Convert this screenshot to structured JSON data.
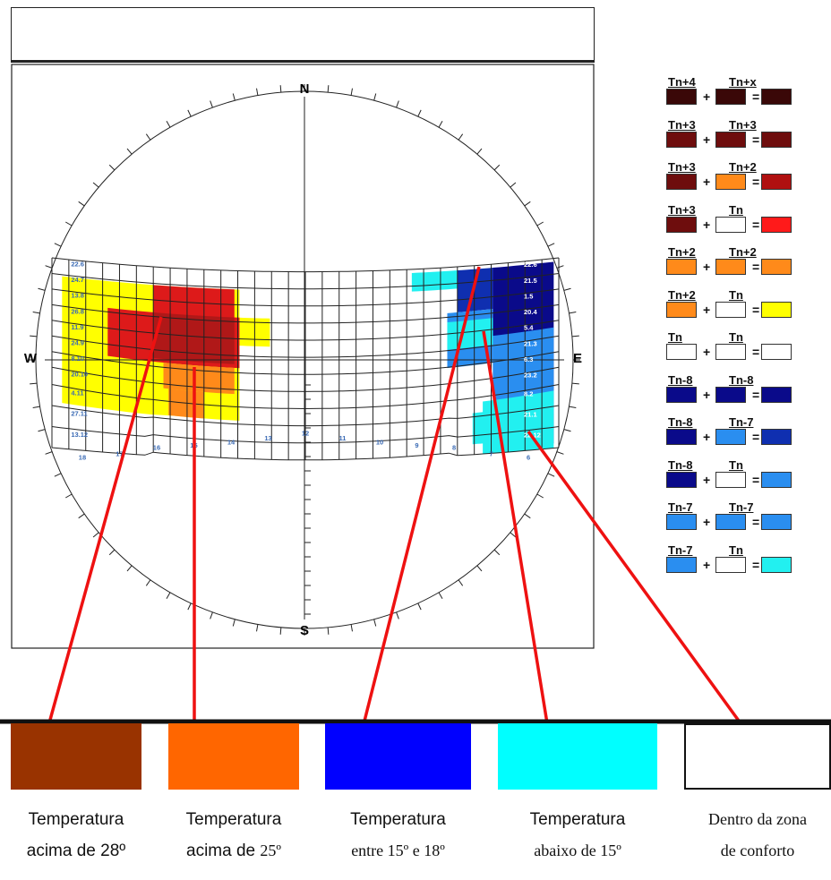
{
  "title": "",
  "compass": {
    "north": "N",
    "south": "S",
    "west": "W",
    "east": "E"
  },
  "left_scale_labels": [
    "22.6",
    "24.7",
    "13.8",
    "26.8",
    "11.9",
    "24.9",
    "8.10",
    "20.10",
    "4.11",
    "27.11",
    "13.12"
  ],
  "right_scale_labels": [
    "22.6",
    "21.5",
    "1.5",
    "20.4",
    "5.4",
    "21.3",
    "6.3",
    "23.2",
    "8.2",
    "21.1",
    "22.12"
  ],
  "hour_labels": [
    "18",
    "17",
    "16",
    "15",
    "14",
    "13",
    "12",
    "11",
    "10",
    "9",
    "8",
    "7",
    "6"
  ],
  "legend": [
    {
      "a": "Tn+4",
      "b": "Tn+x",
      "ca": "#3a0808",
      "cb": "#3a0808",
      "r": "#3a0808"
    },
    {
      "a": "Tn+3",
      "b": "Tn+3",
      "ca": "#6e0d0d",
      "cb": "#6e0d0d",
      "r": "#6e0d0d"
    },
    {
      "a": "Tn+3",
      "b": "Tn+2",
      "ca": "#6e0d0d",
      "cb": "#ff8a1a",
      "r": "#b01010"
    },
    {
      "a": "Tn+3",
      "b": "Tn",
      "ca": "#6e0d0d",
      "cb": "#ffffff",
      "r": "#ff1a1a"
    },
    {
      "a": "Tn+2",
      "b": "Tn+2",
      "ca": "#ff8a1a",
      "cb": "#ff8a1a",
      "r": "#ff8a1a"
    },
    {
      "a": "Tn+2",
      "b": "Tn",
      "ca": "#ff8a1a",
      "cb": "#ffffff",
      "r": "#ffff00"
    },
    {
      "a": "Tn",
      "b": "Tn",
      "ca": "#ffffff",
      "cb": "#ffffff",
      "r": "#ffffff"
    },
    {
      "a": "Tn-8",
      "b": "Tn-8",
      "ca": "#0a0a8a",
      "cb": "#0a0a8a",
      "r": "#0a0a8a"
    },
    {
      "a": "Tn-8",
      "b": "Tn-7",
      "ca": "#0a0a8a",
      "cb": "#2a8ef0",
      "r": "#0f2fb0"
    },
    {
      "a": "Tn-8",
      "b": "Tn",
      "ca": "#0a0a8a",
      "cb": "#ffffff",
      "r": "#2a8ef0"
    },
    {
      "a": "Tn-7",
      "b": "Tn-7",
      "ca": "#2a8ef0",
      "cb": "#2a8ef0",
      "r": "#2a8ef0"
    },
    {
      "a": "Tn-7",
      "b": "Tn",
      "ca": "#2a8ef0",
      "cb": "#ffffff",
      "r": "#22f0f0"
    }
  ],
  "legend_ops": {
    "plus": "+",
    "equals": "="
  },
  "categories": [
    {
      "color": "#993300",
      "line1": "Temperatura",
      "line2": "acima de 28º"
    },
    {
      "color": "#ff6600",
      "line1": "Temperatura",
      "line2a": "acima de ",
      "line2b": "25º"
    },
    {
      "color": "#0000ff",
      "line1": "Temperatura",
      "line2": "entre 15º e 18º"
    },
    {
      "color": "#00ffff",
      "line1": "Temperatura",
      "line2": "abaixo de 15º"
    },
    {
      "color": "#ffffff",
      "line1": "Dentro da zona",
      "line2": "de conforto"
    }
  ],
  "colors": {
    "arrow": "#ee1111",
    "grid": "#222222",
    "label_blue": "#3b6bb5"
  }
}
